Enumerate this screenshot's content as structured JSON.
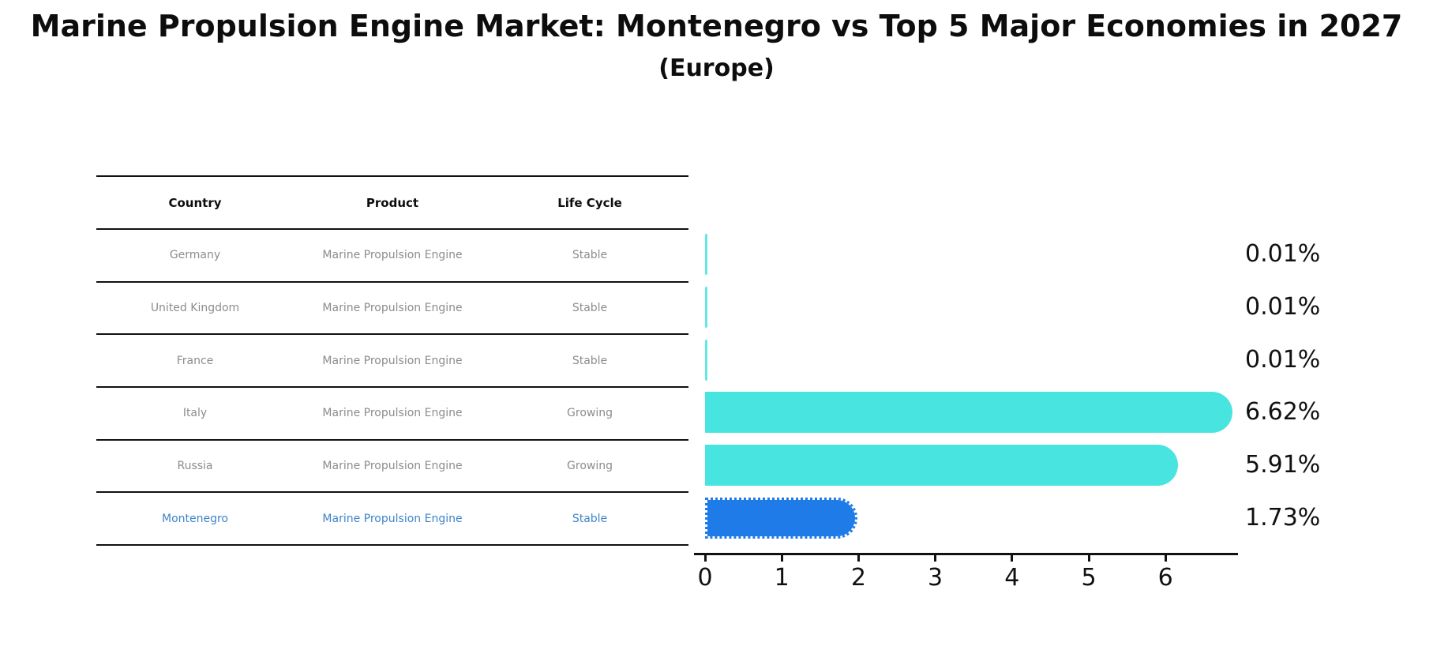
{
  "title": "Marine Propulsion Engine Market: Montenegro vs Top 5 Major Economies in 2027",
  "subtitle": "(Europe)",
  "table": {
    "headers": [
      "Country",
      "Product",
      "Life Cycle"
    ],
    "rows": [
      {
        "country": "Germany",
        "product": "Marine Propulsion Engine",
        "life_cycle": "Stable",
        "highlighted": false
      },
      {
        "country": "United Kingdom",
        "product": "Marine Propulsion Engine",
        "life_cycle": "Stable",
        "highlighted": false
      },
      {
        "country": "France",
        "product": "Marine Propulsion Engine",
        "life_cycle": "Stable",
        "highlighted": false
      },
      {
        "country": "Italy",
        "product": "Marine Propulsion Engine",
        "life_cycle": "Growing",
        "highlighted": false
      },
      {
        "country": "Russia",
        "product": "Marine Propulsion Engine",
        "life_cycle": "Growing",
        "highlighted": false
      },
      {
        "country": "Montenegro",
        "product": "Marine Propulsion Engine",
        "life_cycle": "Stable",
        "highlighted": true
      }
    ]
  },
  "chart_data": {
    "type": "bar",
    "orientation": "horizontal",
    "title": "Marine Propulsion Engine Market: Montenegro vs Top 5 Major Economies in 2027",
    "subtitle": "(Europe)",
    "categories": [
      "Germany",
      "United Kingdom",
      "France",
      "Italy",
      "Russia",
      "Montenegro"
    ],
    "values": [
      0.01,
      0.01,
      0.01,
      6.62,
      5.91,
      1.73
    ],
    "value_labels": [
      "0.01%",
      "0.01%",
      "0.01%",
      "6.62%",
      "5.91%",
      "1.73%"
    ],
    "x_ticks": [
      "0",
      "1",
      "2",
      "3",
      "4",
      "5",
      "6"
    ],
    "xlim": [
      0,
      6.95
    ],
    "xlabel": "",
    "ylabel": "",
    "grid": false,
    "legend": false,
    "highlight_index": 5,
    "colors": {
      "bar_default": "#48e5e0",
      "bar_highlight": "#1e7be8",
      "highlight_text": "#3d85c8",
      "table_text": "#8c8c8c",
      "header_text": "#0d0d0d",
      "axis": "#111111"
    }
  }
}
